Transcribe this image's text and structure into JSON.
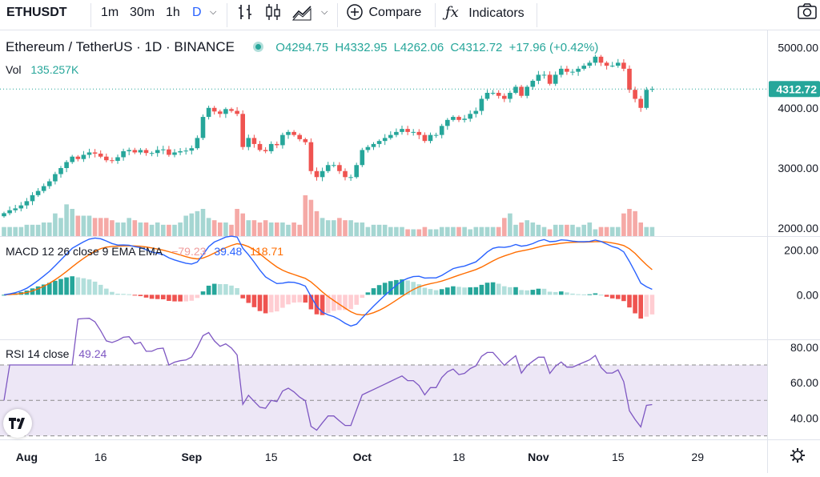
{
  "toolbar": {
    "symbol": "ETHUSDT",
    "intervals": [
      "1m",
      "30m",
      "1h",
      "D"
    ],
    "active_interval": "D",
    "compare_label": "Compare",
    "indicators_label": "Indicators",
    "camera_icon": "camera-icon",
    "settings_icon": "gear-icon"
  },
  "legend": {
    "title": "Ethereum / TetherUS · 1D · BINANCE",
    "open": "O4294.75",
    "high": "H4332.95",
    "low": "L4262.06",
    "close": "C4312.72",
    "change": "+17.96 (+0.42%)",
    "vol_label": "Vol",
    "vol_value": "135.257K",
    "macd_label": "MACD 12 26 close 9 EMA EMA",
    "macd_hist": "−79.23",
    "macd_line": "39.48",
    "macd_signal": "118.71",
    "rsi_label": "RSI 14 close",
    "rsi_value": "49.24",
    "last_price": "4312.72"
  },
  "colors": {
    "up": "#26a69a",
    "down": "#ef5350",
    "macd": "#2962ff",
    "signal": "#ff6d00",
    "rsi": "#7e57c2",
    "rsi_band": "#ede7f6"
  },
  "chart_data": [
    {
      "type": "candlestick",
      "title": "Ethereum / TetherUS · 1D · BINANCE",
      "y_ticks": [
        2000,
        3000,
        4000,
        5000
      ],
      "y_tick_labels": [
        "2000.00",
        "3000.00",
        "4000.00",
        "5000.00"
      ],
      "ylim": [
        1870,
        5300
      ],
      "x_tick_labels": [
        "Aug",
        "16",
        "Sep",
        "15",
        "Oct",
        "18",
        "Nov",
        "15",
        "29"
      ],
      "x_tick_index": [
        4,
        17,
        33,
        47,
        63,
        80,
        94,
        108,
        122
      ],
      "closes": [
        2250,
        2300,
        2330,
        2380,
        2450,
        2550,
        2620,
        2700,
        2780,
        2900,
        3000,
        3100,
        3190,
        3150,
        3220,
        3260,
        3240,
        3190,
        3130,
        3120,
        3180,
        3280,
        3300,
        3260,
        3300,
        3250,
        3250,
        3300,
        3310,
        3220,
        3260,
        3280,
        3290,
        3330,
        3500,
        3850,
        4000,
        3940,
        3900,
        3980,
        3950,
        3900,
        3350,
        3500,
        3400,
        3300,
        3280,
        3400,
        3380,
        3550,
        3600,
        3550,
        3480,
        3430,
        2950,
        2850,
        2950,
        3050,
        3050,
        2950,
        2850,
        2850,
        3050,
        3300,
        3350,
        3400,
        3450,
        3500,
        3550,
        3600,
        3650,
        3600,
        3600,
        3550,
        3450,
        3550,
        3550,
        3700,
        3800,
        3850,
        3800,
        3820,
        3900,
        3950,
        4150,
        4250,
        4250,
        4200,
        4150,
        4250,
        4350,
        4200,
        4350,
        4450,
        4550,
        4550,
        4400,
        4550,
        4650,
        4600,
        4600,
        4650,
        4700,
        4750,
        4850,
        4750,
        4700,
        4700,
        4750,
        4650,
        4300,
        4150,
        4000,
        4300,
        4312.72
      ],
      "volumes": [
        1700,
        1700,
        1700,
        1700,
        1750,
        1750,
        1750,
        1800,
        1800,
        2000,
        1900,
        2200,
        2100,
        1950,
        1950,
        1950,
        1900,
        1900,
        1900,
        1850,
        1800,
        1800,
        1900,
        1850,
        1800,
        1800,
        1750,
        1800,
        1750,
        1750,
        1750,
        1800,
        1950,
        2000,
        2050,
        2100,
        1900,
        1850,
        1800,
        1800,
        1750,
        2100,
        2000,
        1850,
        1850,
        1800,
        1850,
        1800,
        1800,
        1800,
        1750,
        1800,
        1750,
        2400,
        2300,
        2050,
        1900,
        1850,
        1850,
        1900,
        1850,
        1850,
        1800,
        1800,
        1700,
        1750,
        1750,
        1750,
        1700,
        1700,
        1700,
        1650,
        1650,
        1650,
        1700,
        1650,
        1650,
        1700,
        1700,
        1700,
        1700,
        1700,
        1650,
        1700,
        1700,
        1700,
        1700,
        1700,
        1900,
        2000,
        1750,
        1800,
        1850,
        1800,
        1750,
        1700,
        1650,
        1750,
        1750,
        1750,
        1750,
        1700,
        1750,
        1800,
        1650,
        1700,
        1700,
        1700,
        1700,
        2000,
        2100,
        2050,
        1800,
        1700,
        1700
      ]
    },
    {
      "type": "macd",
      "y_ticks": [
        0,
        200
      ],
      "y_tick_labels": [
        "0.00",
        "200.00"
      ],
      "ylim": [
        -200,
        260
      ],
      "macd_final": 39.48,
      "signal_final": 118.71,
      "histogram_final": -79.23
    },
    {
      "type": "rsi",
      "y_ticks": [
        40,
        60,
        80
      ],
      "y_tick_labels": [
        "40.00",
        "60.00",
        "80.00"
      ],
      "ylim": [
        28,
        84
      ],
      "band": [
        30,
        70
      ],
      "mid": 50,
      "rsi_final": 49.24
    }
  ]
}
